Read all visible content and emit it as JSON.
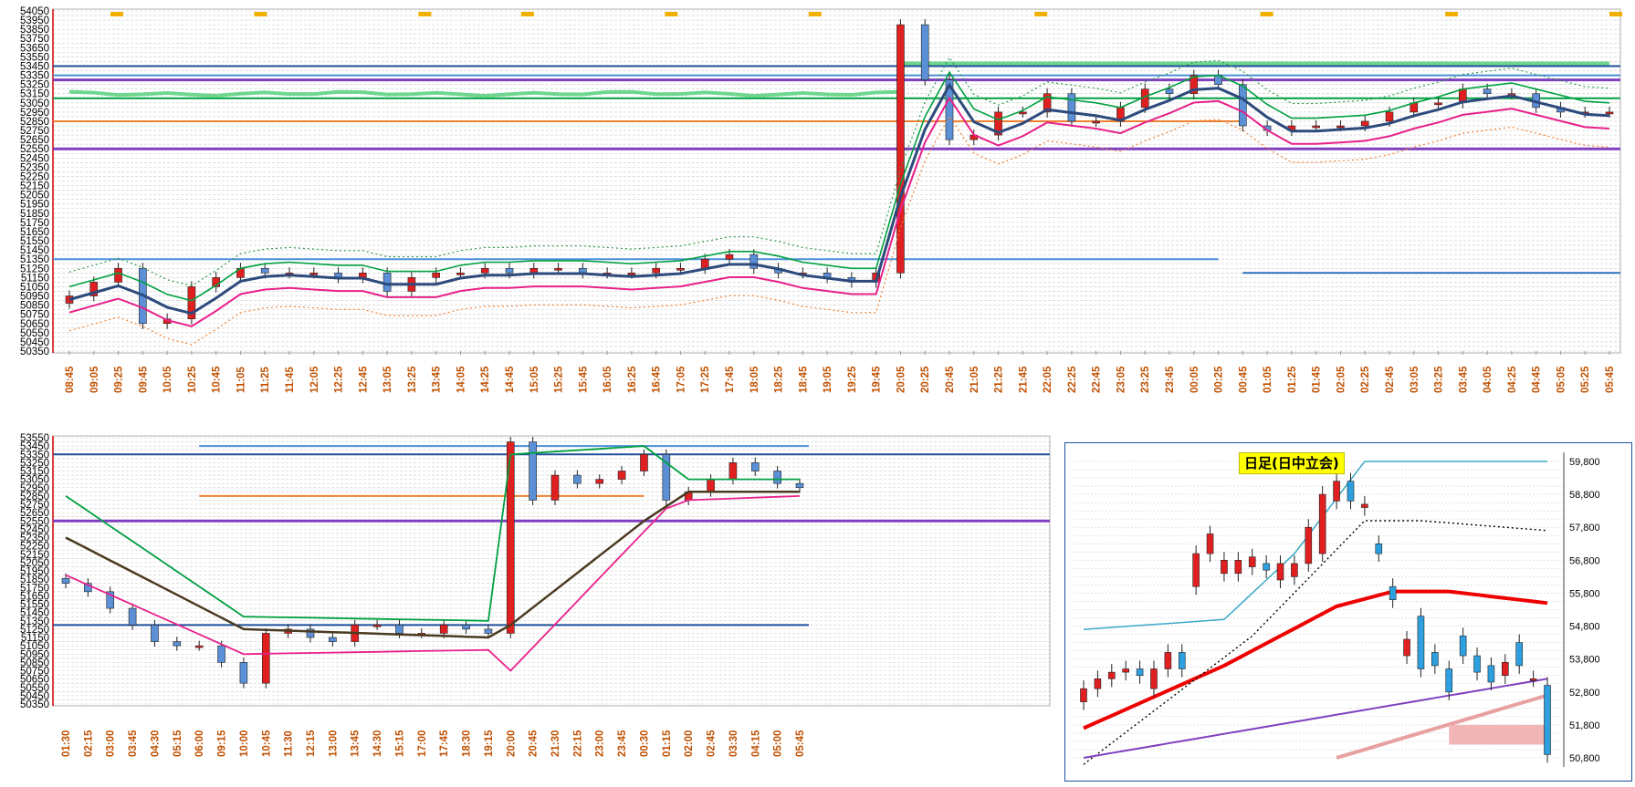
{
  "top_chart": {
    "y_ticks": [
      "54050",
      "53950",
      "53850",
      "53750",
      "53650",
      "53550",
      "53450",
      "53350",
      "53250",
      "53150",
      "53050",
      "52950",
      "52850",
      "52750",
      "52650",
      "52550",
      "52450",
      "52350",
      "52250",
      "52150",
      "52050",
      "51950",
      "51850",
      "51750",
      "51650",
      "51550",
      "51450",
      "51350",
      "51250",
      "51150",
      "51050",
      "50950",
      "50850",
      "50750",
      "50650",
      "50550",
      "50450",
      "50350"
    ],
    "x_ticks": [
      "08:45",
      "09:05",
      "09:25",
      "09:45",
      "10:05",
      "10:25",
      "10:45",
      "11:05",
      "11:25",
      "11:45",
      "12:05",
      "12:25",
      "12:45",
      "13:05",
      "13:25",
      "13:45",
      "14:05",
      "14:25",
      "14:45",
      "15:05",
      "15:25",
      "15:45",
      "16:05",
      "16:25",
      "16:45",
      "17:05",
      "17:25",
      "17:45",
      "18:05",
      "18:25",
      "18:45",
      "19:05",
      "19:25",
      "19:45",
      "20:05",
      "20:25",
      "20:45",
      "21:05",
      "21:25",
      "21:45",
      "22:05",
      "22:25",
      "22:45",
      "23:05",
      "23:25",
      "23:45",
      "00:05",
      "00:25",
      "00:45",
      "01:05",
      "01:25",
      "01:45",
      "02:05",
      "02:25",
      "02:45",
      "03:05",
      "03:25",
      "03:45",
      "04:05",
      "04:25",
      "04:45",
      "05:05",
      "05:25",
      "05:45"
    ],
    "x_ticks_printed": [
      "08:45",
      "09:05",
      "09:25",
      "09:45",
      "10:05",
      "10:25",
      "10:45",
      "11:05",
      "11:25",
      "11:45",
      "12:05",
      "12:25",
      "12:45",
      "13:05",
      "13:25",
      "13:45",
      "14:05",
      "14:25",
      "14:45",
      "15:05",
      "15:25",
      "15:45",
      "16:05",
      "16:25",
      "16:45",
      "17:05",
      "17:25",
      "17:45",
      "18:05",
      "18:25",
      "18:45",
      "19:05",
      "19:25",
      "19:45",
      "20:05",
      "20:25",
      "20:45",
      "21:05",
      "21:25",
      "21:45",
      "22:05",
      "22:25",
      "22:45",
      "23:05",
      "23:25",
      "23:45",
      "00:05",
      "00:25",
      "00:45",
      "01:05",
      "01:25",
      "01:45",
      "02:05",
      "02:25",
      "02:45",
      "03:05",
      "03:25",
      "03:45",
      "04:05",
      "04:25",
      "04:45",
      "05:05",
      "05:25",
      "05:45"
    ]
  },
  "bottom_left_chart": {
    "y_ticks": [
      "53550",
      "53450",
      "53350",
      "53250",
      "53150",
      "53050",
      "52950",
      "52850",
      "52750",
      "52650",
      "52550",
      "52450",
      "52350",
      "52250",
      "52150",
      "52050",
      "51950",
      "51850",
      "51750",
      "51650",
      "51550",
      "51450",
      "51350",
      "51250",
      "51150",
      "51050",
      "50950",
      "50850",
      "50750",
      "50650",
      "50550",
      "50450",
      "50350"
    ],
    "x_ticks": [
      "01:30",
      "02:15",
      "03:00",
      "03:45",
      "04:30",
      "05:15",
      "06:00",
      "09:15",
      "10:00",
      "10:45",
      "11:30",
      "12:15",
      "13:00",
      "13:45",
      "14:30",
      "15:15",
      "17:00",
      "17:45",
      "18:30",
      "19:15",
      "20:00",
      "20:45",
      "21:30",
      "22:15",
      "23:00",
      "23:45",
      "00:30",
      "01:15",
      "02:00",
      "02:45",
      "03:30",
      "04:15",
      "05:00",
      "05:45"
    ]
  },
  "daily_chart": {
    "title": "日足(日中立会)",
    "y_ticks": [
      "59,800",
      "58,800",
      "57,800",
      "56,800",
      "55,800",
      "54,800",
      "53,800",
      "52,800",
      "51,800",
      "50,800"
    ]
  },
  "colors": {
    "axis_label_red": "#c00000",
    "time_label_orange": "#c05000",
    "navy_band": "#1f4e9a",
    "green_band": "#00a040",
    "light_green_band": "#6fd68f",
    "purple_line": "#7f3fbf",
    "magenta_line": "#e8208a",
    "dark_blue_ma": "#2c4a7c",
    "orange_line": "#f08030",
    "daily_red_ma": "#ee0000"
  },
  "chart_data": [
    {
      "type": "candlestick",
      "panel": "top",
      "ylim": [
        50350,
        54050
      ],
      "x": [
        "08:45",
        "09:05",
        "09:25",
        "09:45",
        "10:05",
        "10:25",
        "10:45",
        "11:05",
        "11:25",
        "11:45",
        "12:05",
        "12:25",
        "12:45",
        "13:05",
        "13:25",
        "13:45",
        "14:05",
        "14:25",
        "14:45",
        "15:05",
        "15:25",
        "15:45",
        "16:05",
        "16:25",
        "16:45",
        "17:05",
        "17:25",
        "17:45",
        "18:05",
        "18:25",
        "18:45",
        "19:05",
        "19:25",
        "19:45",
        "20:05",
        "20:25",
        "20:45",
        "21:05",
        "21:25",
        "21:45",
        "22:05",
        "22:25",
        "22:45",
        "23:05",
        "23:25",
        "23:45",
        "00:05",
        "00:25",
        "00:45",
        "01:05",
        "01:25",
        "01:45",
        "02:05",
        "02:25",
        "02:45",
        "03:05",
        "03:25",
        "03:45",
        "04:05",
        "04:25",
        "04:45",
        "05:05",
        "05:25",
        "05:45"
      ],
      "close": [
        50950,
        51100,
        51250,
        50650,
        50700,
        51050,
        51150,
        51250,
        51200,
        51200,
        51200,
        51150,
        51200,
        51000,
        51150,
        51200,
        51200,
        51250,
        51200,
        51250,
        51250,
        51200,
        51200,
        51200,
        51250,
        51250,
        51350,
        51400,
        51250,
        51200,
        51200,
        51150,
        51100,
        51200,
        53900,
        53300,
        52650,
        52700,
        52950,
        52950,
        53150,
        52850,
        52850,
        53000,
        53200,
        53150,
        53350,
        53250,
        52800,
        52750,
        52800,
        52800,
        52800,
        52850,
        52950,
        53050,
        53050,
        53200,
        53150,
        53150,
        53000,
        52950,
        52950,
        52950
      ],
      "horizontal_levels": [
        53450,
        53350,
        53300,
        53100,
        52850,
        52550,
        51350,
        51200
      ],
      "grid": true
    },
    {
      "type": "candlestick",
      "panel": "bottom-left",
      "ylim": [
        50350,
        53550
      ],
      "x": [
        "01:30",
        "02:15",
        "03:00",
        "03:45",
        "04:30",
        "05:15",
        "06:00",
        "09:15",
        "10:00",
        "10:45",
        "11:30",
        "12:15",
        "13:00",
        "13:45",
        "14:30",
        "15:15",
        "17:00",
        "17:45",
        "18:30",
        "19:15",
        "20:00",
        "20:45",
        "21:30",
        "22:15",
        "23:00",
        "23:45",
        "00:30",
        "01:15",
        "02:00",
        "02:45",
        "03:30",
        "04:15",
        "05:00",
        "05:45"
      ],
      "close": [
        51800,
        51700,
        51500,
        51300,
        51100,
        51050,
        51050,
        50850,
        50600,
        51200,
        51250,
        51150,
        51100,
        51300,
        51300,
        51200,
        51200,
        51300,
        51250,
        51200,
        53500,
        52800,
        53100,
        53000,
        53050,
        53150,
        53350,
        52800,
        52900,
        53050,
        53250,
        53150,
        53000,
        52950
      ],
      "horizontal_levels": [
        53450,
        53350,
        52850,
        52550,
        51300
      ],
      "grid": true
    },
    {
      "type": "candlestick",
      "panel": "bottom-right",
      "title": "日足(日中立会)",
      "ylim": [
        50800,
        59800
      ],
      "open": [
        52500,
        52900,
        53200,
        53400,
        53500,
        52900,
        53500,
        54000,
        56000,
        57000,
        56400,
        56400,
        56600,
        56700,
        56200,
        56300,
        56700,
        57000,
        58600,
        59200,
        58400,
        57300,
        56000,
        53900,
        55100,
        54000,
        53500,
        54500,
        53900,
        53600,
        53300,
        54300,
        53200,
        53000
      ],
      "close": [
        52900,
        53200,
        53400,
        53500,
        53300,
        53500,
        54000,
        53500,
        57000,
        57600,
        56800,
        56800,
        56900,
        56500,
        56700,
        56700,
        57800,
        58800,
        59200,
        58600,
        58500,
        57000,
        55600,
        54400,
        53500,
        53600,
        52800,
        53900,
        53400,
        53100,
        53700,
        53600,
        53200,
        50900
      ],
      "grid": true
    }
  ]
}
